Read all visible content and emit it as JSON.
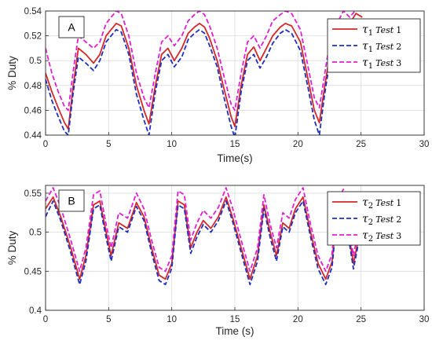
{
  "chart_data": [
    {
      "type": "line",
      "panel_label": "A",
      "xlabel": "Time(s)",
      "ylabel": "% Duty",
      "xlim": [
        0,
        30
      ],
      "ylim": [
        0.44,
        0.54
      ],
      "xticks": [
        "0",
        "5",
        "10",
        "15",
        "20",
        "25",
        "30"
      ],
      "yticks": [
        "0.44",
        "0.46",
        "0.48",
        "0.5",
        "0.52",
        "0.54"
      ],
      "grid": true,
      "legend_position": "top-right",
      "series": [
        {
          "name": "τ1 Test 1",
          "legend": {
            "symbol": "τ",
            "sub": "1",
            "word": "Test",
            "num": "1"
          },
          "color": "#d62728",
          "dash": "solid",
          "x": [
            0,
            0.5,
            1,
            1.5,
            1.8,
            2.2,
            2.6,
            3.2,
            3.8,
            4.3,
            4.8,
            5.2,
            5.6,
            6.0,
            6.6,
            7.2,
            7.8,
            8.2,
            8.7,
            9.2,
            9.7,
            10.2,
            10.8,
            11.3,
            11.8,
            12.2,
            12.6,
            13.0,
            13.6,
            14.2,
            14.7,
            15.0,
            15.5,
            16.0,
            16.5,
            17.0,
            17.5,
            18.0,
            18.6,
            19.0,
            19.5,
            20.2,
            20.8,
            21.3,
            21.7,
            22.1,
            22.6,
            23.1,
            23.6,
            24.1,
            24.6,
            25.1
          ],
          "y": [
            0.49,
            0.475,
            0.462,
            0.45,
            0.445,
            0.48,
            0.51,
            0.505,
            0.498,
            0.505,
            0.52,
            0.525,
            0.53,
            0.528,
            0.51,
            0.48,
            0.46,
            0.449,
            0.48,
            0.505,
            0.51,
            0.5,
            0.51,
            0.522,
            0.527,
            0.53,
            0.527,
            0.518,
            0.5,
            0.475,
            0.455,
            0.447,
            0.48,
            0.505,
            0.511,
            0.5,
            0.51,
            0.52,
            0.527,
            0.53,
            0.528,
            0.515,
            0.485,
            0.46,
            0.45,
            0.478,
            0.51,
            0.52,
            0.532,
            0.53,
            0.538,
            0.535
          ]
        },
        {
          "name": "τ1 Test 2",
          "legend": {
            "symbol": "τ",
            "sub": "1",
            "word": "Test",
            "num": "2"
          },
          "color": "#1f2fbf",
          "dash": "dashed",
          "x": [
            0,
            0.5,
            1,
            1.5,
            1.8,
            2.2,
            2.6,
            3.2,
            3.8,
            4.3,
            4.8,
            5.2,
            5.6,
            6.0,
            6.6,
            7.2,
            7.8,
            8.2,
            8.7,
            9.2,
            9.7,
            10.2,
            10.8,
            11.3,
            11.8,
            12.2,
            12.6,
            13.0,
            13.6,
            14.2,
            14.7,
            15.0,
            15.5,
            16.0,
            16.5,
            17.0,
            17.5,
            18.0,
            18.6,
            19.0,
            19.5,
            20.2,
            20.8,
            21.3,
            21.7,
            22.1,
            22.6,
            23.1,
            23.6,
            24.1,
            24.6,
            25.1
          ],
          "y": [
            0.485,
            0.468,
            0.455,
            0.443,
            0.44,
            0.475,
            0.503,
            0.498,
            0.492,
            0.5,
            0.515,
            0.52,
            0.525,
            0.523,
            0.505,
            0.473,
            0.452,
            0.44,
            0.475,
            0.5,
            0.505,
            0.495,
            0.503,
            0.517,
            0.522,
            0.525,
            0.522,
            0.512,
            0.495,
            0.468,
            0.447,
            0.438,
            0.475,
            0.5,
            0.505,
            0.494,
            0.503,
            0.514,
            0.522,
            0.525,
            0.522,
            0.508,
            0.478,
            0.452,
            0.44,
            0.472,
            0.505,
            0.515,
            0.527,
            0.525,
            0.532,
            0.53
          ]
        },
        {
          "name": "τ1 Test 3",
          "legend": {
            "symbol": "τ",
            "sub": "1",
            "word": "Test",
            "num": "3"
          },
          "color": "#e020d0",
          "dash": "dashed",
          "x": [
            0,
            0.5,
            1,
            1.5,
            1.8,
            2.2,
            2.6,
            3.2,
            3.8,
            4.3,
            4.8,
            5.2,
            5.6,
            6.0,
            6.6,
            7.2,
            7.8,
            8.2,
            8.7,
            9.2,
            9.7,
            10.2,
            10.8,
            11.3,
            11.8,
            12.2,
            12.6,
            13.0,
            13.6,
            14.2,
            14.7,
            15.0,
            15.5,
            16.0,
            16.5,
            17.0,
            17.5,
            18.0,
            18.6,
            19.0,
            19.5,
            20.2,
            20.8,
            21.3,
            21.7,
            22.1,
            22.6,
            23.1,
            23.6,
            24.1,
            24.6,
            25.1
          ],
          "y": [
            0.51,
            0.49,
            0.475,
            0.463,
            0.46,
            0.492,
            0.52,
            0.515,
            0.51,
            0.515,
            0.53,
            0.535,
            0.54,
            0.538,
            0.52,
            0.49,
            0.47,
            0.462,
            0.49,
            0.515,
            0.52,
            0.512,
            0.52,
            0.532,
            0.537,
            0.54,
            0.537,
            0.528,
            0.51,
            0.485,
            0.465,
            0.46,
            0.49,
            0.515,
            0.52,
            0.51,
            0.52,
            0.532,
            0.537,
            0.54,
            0.538,
            0.525,
            0.495,
            0.47,
            0.462,
            0.488,
            0.52,
            0.53,
            0.54,
            0.535,
            0.541,
            0.54
          ]
        }
      ]
    },
    {
      "type": "line",
      "panel_label": "B",
      "xlabel": "Time (s)",
      "ylabel": "% Duty",
      "xlim": [
        0,
        30
      ],
      "ylim": [
        0.4,
        0.56
      ],
      "xticks": [
        "0",
        "5",
        "10",
        "15",
        "20",
        "25",
        "30"
      ],
      "yticks": [
        "0.4",
        "0.45",
        "0.5",
        "0.55"
      ],
      "grid": true,
      "legend_position": "top-right",
      "series": [
        {
          "name": "τ2 Test 1",
          "legend": {
            "symbol": "τ",
            "sub": "2",
            "word": "Test",
            "num": "1"
          },
          "color": "#d62728",
          "dash": "solid",
          "x": [
            0,
            0.6,
            1.2,
            2.0,
            2.7,
            3.2,
            3.8,
            4.3,
            4.8,
            5.2,
            5.8,
            6.5,
            7.2,
            7.8,
            8.4,
            9.0,
            9.5,
            10.0,
            10.5,
            11.0,
            11.5,
            12.0,
            12.5,
            13.1,
            13.7,
            14.3,
            14.8,
            15.5,
            16.2,
            16.8,
            17.3,
            17.8,
            18.3,
            18.8,
            19.3,
            19.8,
            20.4,
            21.0,
            21.6,
            22.2,
            22.7,
            23.1,
            23.6,
            24.0,
            24.4,
            24.9
          ],
          "y": [
            0.53,
            0.545,
            0.52,
            0.48,
            0.44,
            0.47,
            0.535,
            0.54,
            0.5,
            0.47,
            0.512,
            0.505,
            0.538,
            0.52,
            0.48,
            0.445,
            0.44,
            0.46,
            0.54,
            0.535,
            0.48,
            0.5,
            0.515,
            0.505,
            0.52,
            0.545,
            0.52,
            0.48,
            0.44,
            0.47,
            0.535,
            0.5,
            0.47,
            0.512,
            0.505,
            0.53,
            0.545,
            0.5,
            0.46,
            0.44,
            0.462,
            0.528,
            0.542,
            0.5,
            0.46,
            0.5
          ]
        },
        {
          "name": "τ2 Test 2",
          "legend": {
            "symbol": "τ",
            "sub": "2",
            "word": "Test",
            "num": "2"
          },
          "color": "#1f2fbf",
          "dash": "dashed",
          "x": [
            0,
            0.6,
            1.2,
            2.0,
            2.7,
            3.2,
            3.8,
            4.3,
            4.8,
            5.2,
            5.8,
            6.5,
            7.2,
            7.8,
            8.4,
            9.0,
            9.5,
            10.0,
            10.5,
            11.0,
            11.5,
            12.0,
            12.5,
            13.1,
            13.7,
            14.3,
            14.8,
            15.5,
            16.2,
            16.8,
            17.3,
            17.8,
            18.3,
            18.8,
            19.3,
            19.8,
            20.4,
            21.0,
            21.6,
            22.2,
            22.7,
            23.1,
            23.6,
            24.0,
            24.4,
            24.9
          ],
          "y": [
            0.52,
            0.54,
            0.515,
            0.474,
            0.433,
            0.463,
            0.53,
            0.535,
            0.493,
            0.463,
            0.507,
            0.5,
            0.533,
            0.515,
            0.474,
            0.438,
            0.433,
            0.454,
            0.535,
            0.53,
            0.473,
            0.494,
            0.51,
            0.5,
            0.515,
            0.54,
            0.515,
            0.474,
            0.433,
            0.463,
            0.53,
            0.493,
            0.463,
            0.507,
            0.5,
            0.525,
            0.54,
            0.494,
            0.453,
            0.433,
            0.455,
            0.522,
            0.537,
            0.494,
            0.453,
            0.495
          ]
        },
        {
          "name": "τ2 Test 3",
          "legend": {
            "symbol": "τ",
            "sub": "2",
            "word": "Test",
            "num": "3"
          },
          "color": "#e020d0",
          "dash": "dashed",
          "x": [
            0,
            0.6,
            1.2,
            2.0,
            2.7,
            3.2,
            3.8,
            4.3,
            4.8,
            5.2,
            5.8,
            6.5,
            7.2,
            7.8,
            8.4,
            9.0,
            9.5,
            10.0,
            10.5,
            11.0,
            11.5,
            12.0,
            12.5,
            13.1,
            13.7,
            14.3,
            14.8,
            15.5,
            16.2,
            16.8,
            17.3,
            17.8,
            18.3,
            18.8,
            19.3,
            19.8,
            20.4,
            21.0,
            21.6,
            22.2,
            22.7,
            23.1,
            23.6,
            24.0,
            24.4,
            24.9
          ],
          "y": [
            0.54,
            0.557,
            0.532,
            0.49,
            0.45,
            0.48,
            0.548,
            0.553,
            0.51,
            0.48,
            0.525,
            0.518,
            0.55,
            0.53,
            0.49,
            0.455,
            0.45,
            0.47,
            0.553,
            0.548,
            0.49,
            0.512,
            0.528,
            0.518,
            0.532,
            0.557,
            0.532,
            0.49,
            0.45,
            0.48,
            0.548,
            0.51,
            0.48,
            0.525,
            0.518,
            0.542,
            0.557,
            0.51,
            0.47,
            0.45,
            0.472,
            0.54,
            0.555,
            0.51,
            0.47,
            0.512
          ]
        }
      ]
    }
  ]
}
